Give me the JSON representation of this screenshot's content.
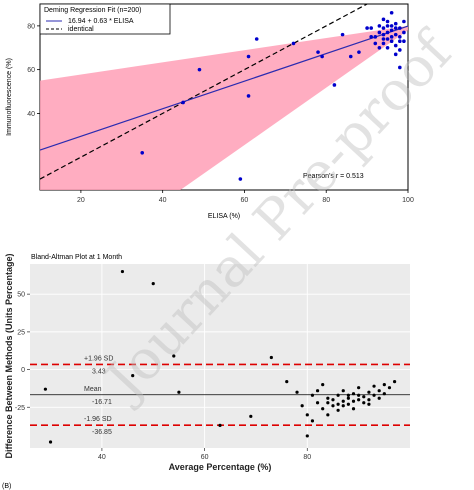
{
  "watermark": "Journal Pre-proof",
  "footer_label": "(B)",
  "chart_data": [
    {
      "type": "scatter",
      "title": "",
      "xlabel": "ELISA (%)",
      "ylabel": "Immunofluorescence (%)",
      "xlim": [
        10,
        100
      ],
      "ylim": [
        5,
        90
      ],
      "xticks": [
        20,
        40,
        60,
        80,
        100
      ],
      "yticks": [
        40,
        60,
        80
      ],
      "legend": {
        "title": "Deming Regression Fit (n=200)",
        "entries": [
          "16.94 + 0.63 * ELISA",
          "identical"
        ],
        "position": "top-left"
      },
      "annotation": "Pearson's r = 0.513",
      "regression": {
        "intercept": 16.94,
        "slope": 0.63
      },
      "confidence_band": {
        "x": [
          10,
          100
        ],
        "lower": [
          -40,
          78
        ],
        "upper": [
          55,
          80
        ]
      },
      "colors": {
        "points": "#0000cc",
        "fit_line": "#2b2bb0",
        "band": "#ff9fb6",
        "identity": "#000000"
      },
      "points": [
        [
          11.5,
          77
        ],
        [
          22,
          80
        ],
        [
          35,
          22
        ],
        [
          45,
          45
        ],
        [
          49,
          60
        ],
        [
          59,
          10
        ],
        [
          61,
          48
        ],
        [
          61,
          66
        ],
        [
          63,
          74
        ],
        [
          72,
          72
        ],
        [
          78,
          68
        ],
        [
          79,
          66
        ],
        [
          82,
          53
        ],
        [
          84,
          76
        ],
        [
          86,
          66
        ],
        [
          88,
          68
        ],
        [
          90,
          79
        ],
        [
          91,
          75
        ],
        [
          92,
          72
        ],
        [
          93,
          70
        ],
        [
          93,
          80
        ],
        [
          94,
          83
        ],
        [
          94,
          76
        ],
        [
          94,
          72
        ],
        [
          95,
          80
        ],
        [
          95,
          74
        ],
        [
          95,
          70
        ],
        [
          96,
          86
        ],
        [
          96,
          78
        ],
        [
          96,
          73
        ],
        [
          97,
          81
        ],
        [
          97,
          76
        ],
        [
          97,
          71
        ],
        [
          97,
          67
        ],
        [
          98,
          79
        ],
        [
          98,
          73
        ],
        [
          98,
          69
        ],
        [
          98,
          61
        ],
        [
          99,
          77
        ],
        [
          99,
          82
        ],
        [
          92,
          75
        ],
        [
          91,
          79
        ],
        [
          93,
          77
        ],
        [
          94,
          79
        ],
        [
          95,
          77
        ],
        [
          96,
          75
        ],
        [
          97,
          79
        ],
        [
          98,
          75
        ],
        [
          99,
          73
        ],
        [
          95,
          82
        ],
        [
          94,
          74
        ],
        [
          96,
          80
        ]
      ]
    },
    {
      "type": "scatter",
      "title": "Bland-Altman Plot at 1 Month",
      "xlabel": "Average Percentage (%)",
      "ylabel": "Difference Between Methods (Units Percentage)",
      "xlim": [
        26,
        100
      ],
      "ylim": [
        -52,
        70
      ],
      "xticks": [
        40,
        60,
        80
      ],
      "yticks": [
        -25,
        0,
        25,
        50
      ],
      "grid": true,
      "reference_lines": [
        {
          "name": "+1.96 SD",
          "value": 3.43,
          "label": "3.43",
          "style": "dashed",
          "color": "#dd0000"
        },
        {
          "name": "Mean",
          "value": -16.71,
          "label": "-16.71",
          "style": "solid",
          "color": "#000000"
        },
        {
          "name": "-1.96 SD",
          "value": -36.85,
          "label": "-36.85",
          "style": "dashed",
          "color": "#dd0000"
        }
      ],
      "colors": {
        "points": "#000000",
        "panel": "#ebebeb",
        "grid": "#ffffff"
      },
      "points": [
        [
          29,
          -13
        ],
        [
          30,
          -48
        ],
        [
          44,
          65
        ],
        [
          46,
          -4
        ],
        [
          50,
          57
        ],
        [
          54,
          9
        ],
        [
          55,
          -15
        ],
        [
          63,
          -37
        ],
        [
          69,
          -31
        ],
        [
          73,
          8
        ],
        [
          76,
          -8
        ],
        [
          78,
          -15
        ],
        [
          79,
          -24
        ],
        [
          80,
          -30
        ],
        [
          80,
          -44
        ],
        [
          81,
          -17
        ],
        [
          81,
          -34
        ],
        [
          82,
          -14
        ],
        [
          82,
          -22
        ],
        [
          83,
          -10
        ],
        [
          83,
          -26
        ],
        [
          84,
          -19
        ],
        [
          84,
          -30
        ],
        [
          85,
          -20
        ],
        [
          85,
          -24
        ],
        [
          86,
          -17
        ],
        [
          86,
          -27
        ],
        [
          87,
          -21
        ],
        [
          87,
          -14
        ],
        [
          88,
          -23
        ],
        [
          88,
          -19
        ],
        [
          89,
          -16
        ],
        [
          89,
          -26
        ],
        [
          90,
          -20
        ],
        [
          90,
          -12
        ],
        [
          91,
          -22
        ],
        [
          91,
          -18
        ],
        [
          92,
          -15
        ],
        [
          92,
          -20
        ],
        [
          93,
          -11
        ],
        [
          93,
          -17
        ],
        [
          94,
          -14
        ],
        [
          95,
          -10
        ],
        [
          95,
          -16
        ],
        [
          96,
          -12
        ],
        [
          97,
          -8
        ],
        [
          84,
          -22
        ],
        [
          86,
          -23
        ],
        [
          88,
          -17
        ],
        [
          90,
          -17
        ],
        [
          92,
          -23
        ],
        [
          94,
          -19
        ],
        [
          87,
          -24
        ],
        [
          89,
          -21
        ]
      ]
    }
  ]
}
